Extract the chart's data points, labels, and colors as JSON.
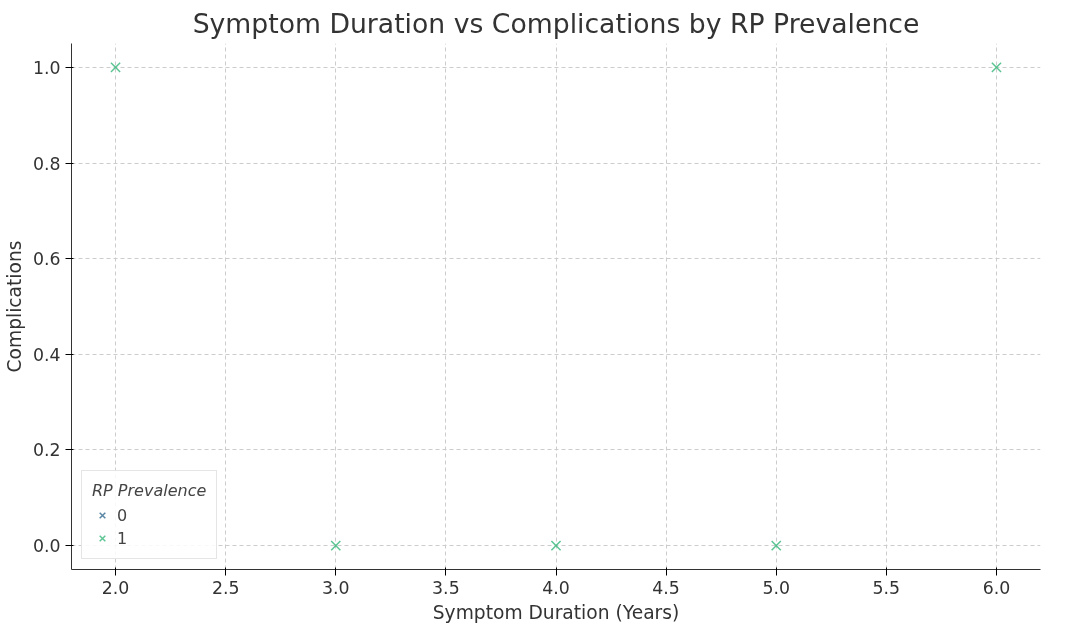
{
  "chart_data": {
    "type": "scatter",
    "title": "Symptom Duration vs Complications by RP Prevalence",
    "xlabel": "Symptom Duration (Years)",
    "ylabel": "Complications",
    "legend_title": "RP Prevalence",
    "x": [
      2.0,
      3.0,
      4.0,
      5.0,
      6.0
    ],
    "series": [
      {
        "name": "0",
        "color": "#31688e",
        "values": [
          null,
          null,
          null,
          null,
          null
        ]
      },
      {
        "name": "1",
        "color": "#35b779",
        "values": [
          1.0,
          0.0,
          0.0,
          0.0,
          1.0
        ]
      }
    ],
    "xlim": [
      1.8,
      6.2
    ],
    "ylim": [
      -0.05,
      1.05
    ],
    "xticks": [
      {
        "value": 2.0,
        "label": "2.0"
      },
      {
        "value": 2.5,
        "label": "2.5"
      },
      {
        "value": 3.0,
        "label": "3.0"
      },
      {
        "value": 3.5,
        "label": "3.5"
      },
      {
        "value": 4.0,
        "label": "4.0"
      },
      {
        "value": 4.5,
        "label": "4.5"
      },
      {
        "value": 5.0,
        "label": "5.0"
      },
      {
        "value": 5.5,
        "label": "5.5"
      },
      {
        "value": 6.0,
        "label": "6.0"
      }
    ],
    "yticks": [
      {
        "value": 0.0,
        "label": "0.0"
      },
      {
        "value": 0.2,
        "label": "0.2"
      },
      {
        "value": 0.4,
        "label": "0.4"
      },
      {
        "value": 0.6,
        "label": "0.6"
      },
      {
        "value": 0.8,
        "label": "0.8"
      },
      {
        "value": 1.0,
        "label": "1.0"
      }
    ],
    "grid": true,
    "legend": "bottom left",
    "marker": "cross"
  }
}
